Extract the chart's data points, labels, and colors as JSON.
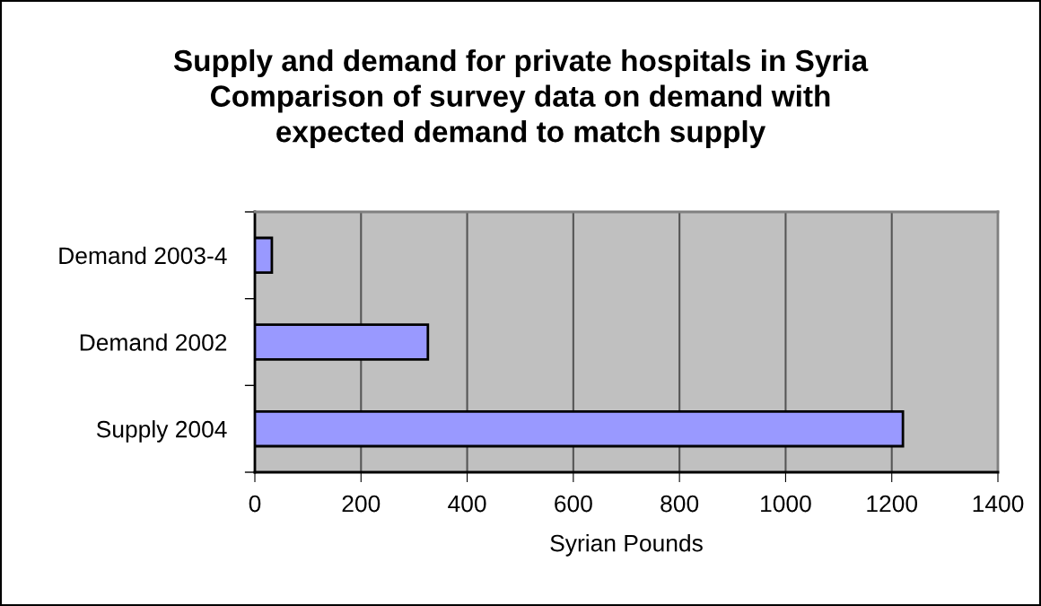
{
  "chart_data": {
    "type": "bar",
    "orientation": "horizontal",
    "title": "Supply and demand for private hospitals in Syria\nComparison of survey data on demand with\nexpected demand to match supply",
    "categories": [
      "Demand 2003-4",
      "Demand 2002",
      "Supply 2004"
    ],
    "values": [
      32,
      326,
      1221
    ],
    "color": "#9999ff",
    "xlabel": "Syrian Pounds",
    "xlim": [
      0,
      1400
    ],
    "xticks": [
      0,
      200,
      400,
      600,
      800,
      1000,
      1200,
      1400
    ],
    "grid": "x"
  }
}
